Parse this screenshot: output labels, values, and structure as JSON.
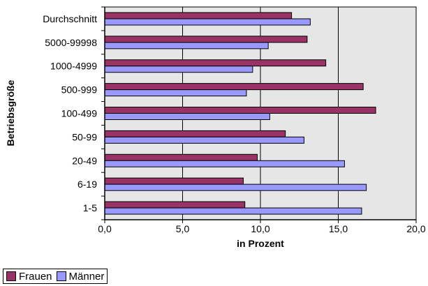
{
  "chart_data": {
    "type": "bar",
    "orientation": "horizontal",
    "title": "",
    "xlabel": "in Prozent",
    "ylabel": "Betriebsgröße",
    "categories": [
      "Durchschnitt",
      "5000-99998",
      "1000-4999",
      "500-999",
      "100-499",
      "50-99",
      "20-49",
      "6-19",
      "1-5"
    ],
    "series": [
      {
        "name": "Frauen",
        "color": "#993366",
        "values": [
          12.0,
          13.0,
          14.2,
          16.6,
          17.4,
          11.6,
          9.8,
          8.9,
          9.0
        ]
      },
      {
        "name": "Männer",
        "color": "#9999FF",
        "values": [
          13.2,
          10.5,
          9.5,
          9.1,
          10.6,
          12.8,
          15.4,
          16.8,
          16.5
        ]
      }
    ],
    "xlim": [
      0,
      20
    ],
    "xticks": [
      "0,0",
      "5,0",
      "10,0",
      "15,0",
      "20,0"
    ],
    "grid": true,
    "legend_position": "bottom-left"
  }
}
